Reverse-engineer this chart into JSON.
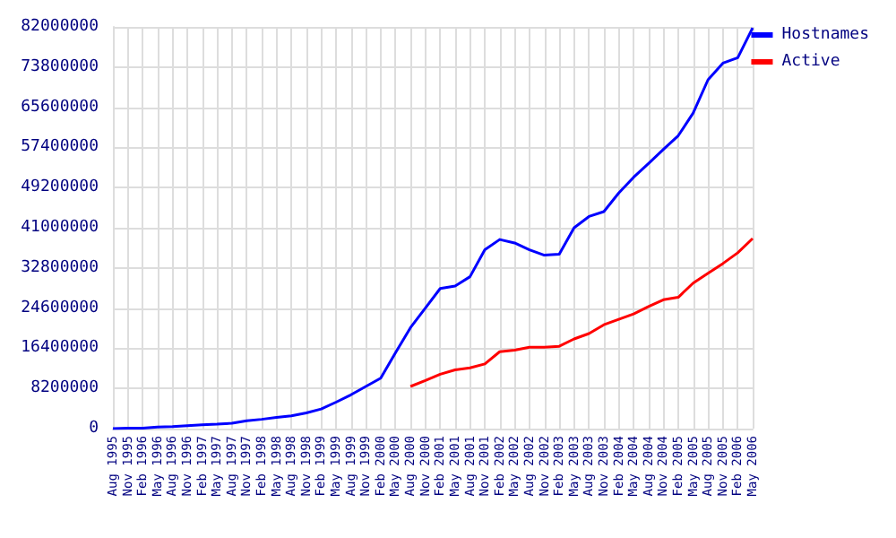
{
  "chart_data": {
    "type": "line",
    "categories": [
      "Aug 1995",
      "Nov 1995",
      "Feb 1996",
      "May 1996",
      "Aug 1996",
      "Nov 1996",
      "Feb 1997",
      "May 1997",
      "Aug 1997",
      "Nov 1997",
      "Feb 1998",
      "May 1998",
      "Aug 1998",
      "Nov 1998",
      "Feb 1999",
      "May 1999",
      "Aug 1999",
      "Nov 1999",
      "Feb 2000",
      "May 2000",
      "Aug 2000",
      "Nov 2000",
      "Feb 2001",
      "May 2001",
      "Aug 2001",
      "Nov 2001",
      "Feb 2002",
      "May 2002",
      "Aug 2002",
      "Nov 2002",
      "Feb 2003",
      "May 2003",
      "Aug 2003",
      "Nov 2003",
      "Feb 2004",
      "May 2004",
      "Aug 2004",
      "Nov 2004",
      "Feb 2005",
      "May 2005",
      "Aug 2005",
      "Nov 2005",
      "Feb 2006",
      "May 2006"
    ],
    "series": [
      {
        "name": "Hostnames",
        "color": "#0000ff",
        "values": [
          0,
          100000,
          100000,
          300000,
          400000,
          600000,
          800000,
          900000,
          1100000,
          1600000,
          1900000,
          2300000,
          2600000,
          3200000,
          4000000,
          5400000,
          6900000,
          8600000,
          10300000,
          15500000,
          20600000,
          24600000,
          28600000,
          29100000,
          31000000,
          36500000,
          38600000,
          37900000,
          36500000,
          35400000,
          35600000,
          41000000,
          43300000,
          44300000,
          48100000,
          51300000,
          54100000,
          57000000,
          59800000,
          64400000,
          71200000,
          74600000,
          75700000,
          81800000
        ]
      },
      {
        "name": "Active",
        "color": "#ff0000",
        "values": [
          null,
          null,
          null,
          null,
          null,
          null,
          null,
          null,
          null,
          null,
          null,
          null,
          null,
          null,
          null,
          null,
          null,
          null,
          null,
          null,
          8600000,
          9800000,
          11100000,
          12000000,
          12400000,
          13200000,
          15700000,
          16000000,
          16600000,
          16600000,
          16800000,
          18300000,
          19400000,
          21200000,
          22300000,
          23400000,
          24900000,
          26300000,
          26800000,
          29700000,
          31700000,
          33700000,
          35900000,
          38800000
        ]
      }
    ],
    "ylim": [
      0,
      82000000
    ],
    "yticks": [
      0,
      8200000,
      16400000,
      24600000,
      32800000,
      41000000,
      49200000,
      57400000,
      65600000,
      73800000,
      82000000
    ],
    "grid": true,
    "legend": "top right",
    "marker": "none",
    "line_style": "solid"
  }
}
